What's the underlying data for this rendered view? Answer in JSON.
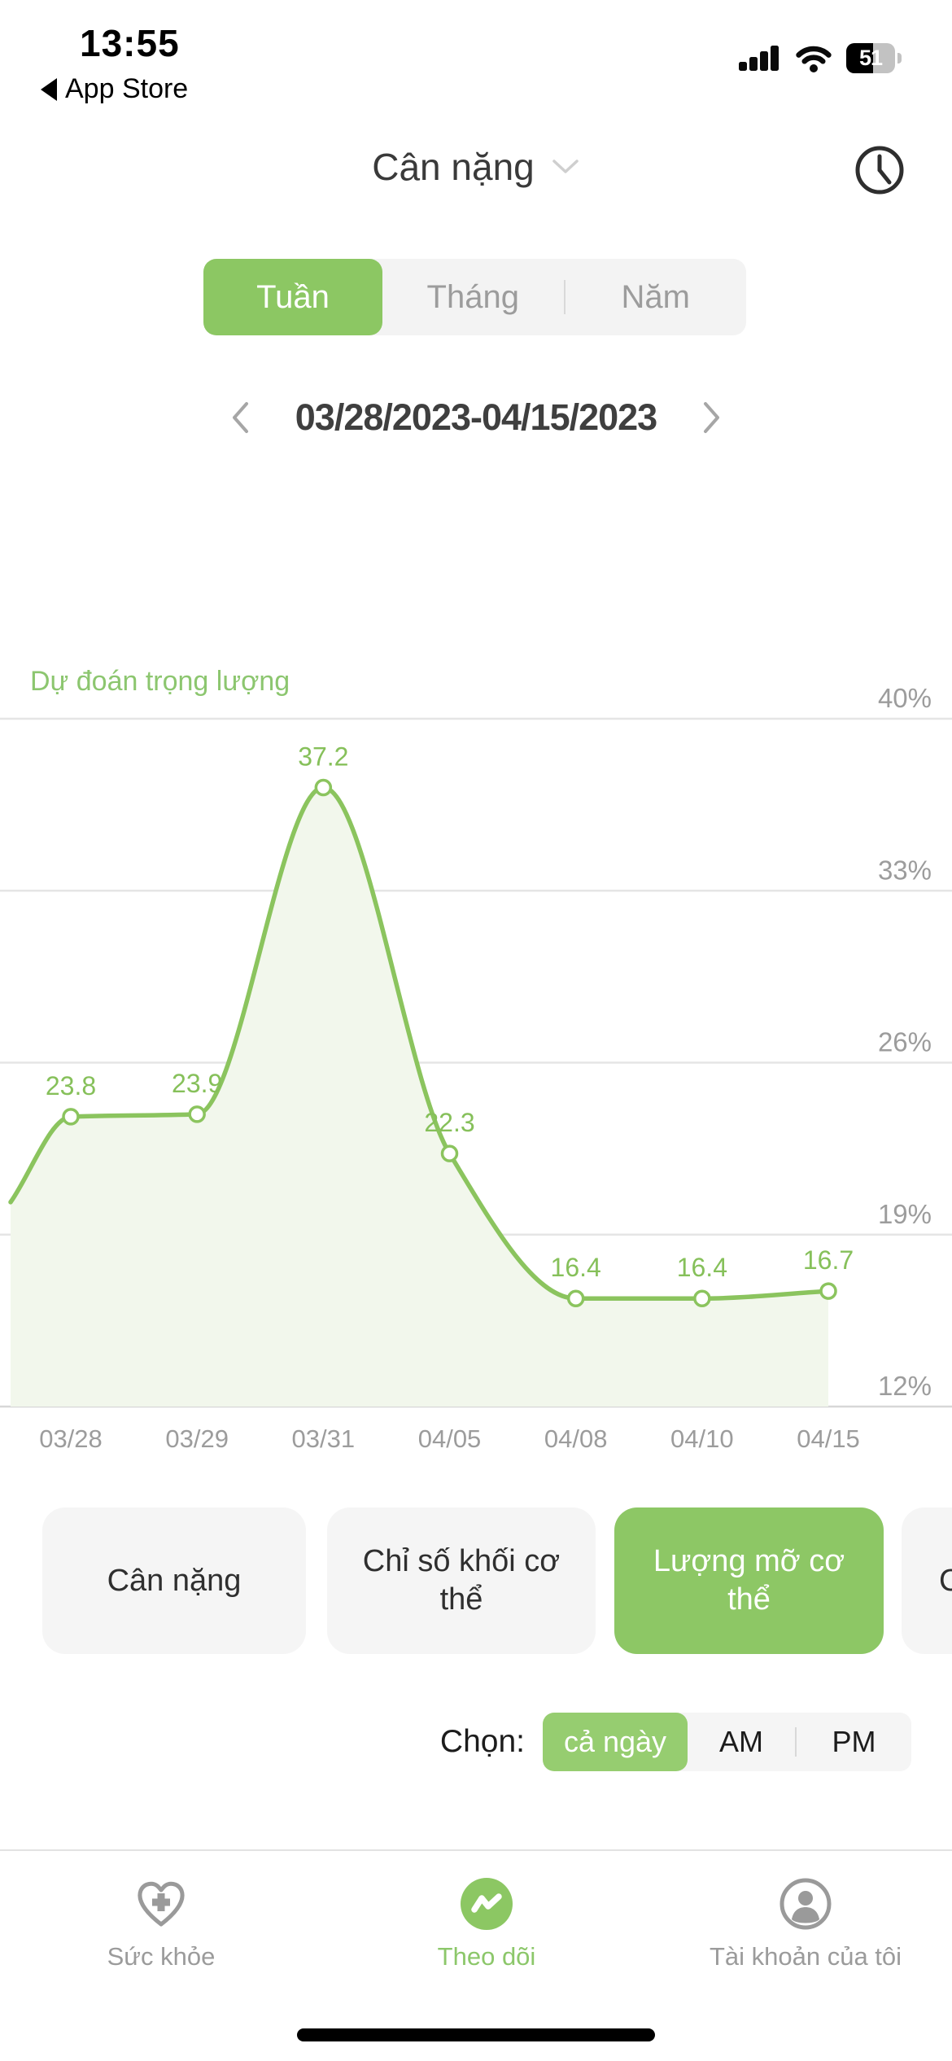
{
  "status_bar": {
    "time": "13:55",
    "back_label": "App Store",
    "battery_percent": "51"
  },
  "header": {
    "title": "Cân nặng"
  },
  "period_tabs": {
    "items": [
      {
        "label": "Tuần",
        "selected": true
      },
      {
        "label": "Tháng",
        "selected": false
      },
      {
        "label": "Năm",
        "selected": false
      }
    ]
  },
  "date_nav": {
    "range": "03/28/2023-04/15/2023"
  },
  "chart_data": {
    "type": "area",
    "title": "Dự đoán trọng lượng",
    "x": [
      "03/28",
      "03/29",
      "03/31",
      "04/05",
      "04/08",
      "04/10",
      "04/15"
    ],
    "values": [
      23.8,
      23.9,
      37.2,
      22.3,
      16.4,
      16.4,
      16.7
    ],
    "y_ticks": [
      {
        "value": 40,
        "label": "40%"
      },
      {
        "value": 33,
        "label": "33%"
      },
      {
        "value": 26,
        "label": "26%"
      },
      {
        "value": 19,
        "label": "19%"
      },
      {
        "value": 12,
        "label": "12%"
      }
    ],
    "ylim": [
      12,
      40
    ],
    "grid": true,
    "legend": "none",
    "line_color": "#8bc45e",
    "fill_color": "#f2f7ec",
    "label_color": "#86c05a",
    "tick_color": "#9c9c9c"
  },
  "metric_buttons": [
    {
      "label": "Cân nặng",
      "selected": false
    },
    {
      "label": "Chỉ số khối cơ thể",
      "selected": false
    },
    {
      "label": "Lượng mỡ cơ thể",
      "selected": true
    },
    {
      "label": "C",
      "selected": false,
      "truncated": true
    }
  ],
  "day_filter": {
    "label": "Chọn:",
    "options": [
      {
        "label": "cả ngày",
        "selected": true
      },
      {
        "label": "AM",
        "selected": false
      },
      {
        "label": "PM",
        "selected": false
      }
    ]
  },
  "tab_bar": {
    "items": [
      {
        "label": "Sức khỏe",
        "icon": "heart-plus-icon",
        "selected": false
      },
      {
        "label": "Theo dõi",
        "icon": "trend-icon",
        "selected": true
      },
      {
        "label": "Tài khoản của tôi",
        "icon": "person-icon",
        "selected": false
      }
    ]
  },
  "colors": {
    "primary": "#8cc763",
    "primary_light": "#96cd70",
    "title_green": "#8cc66f"
  }
}
